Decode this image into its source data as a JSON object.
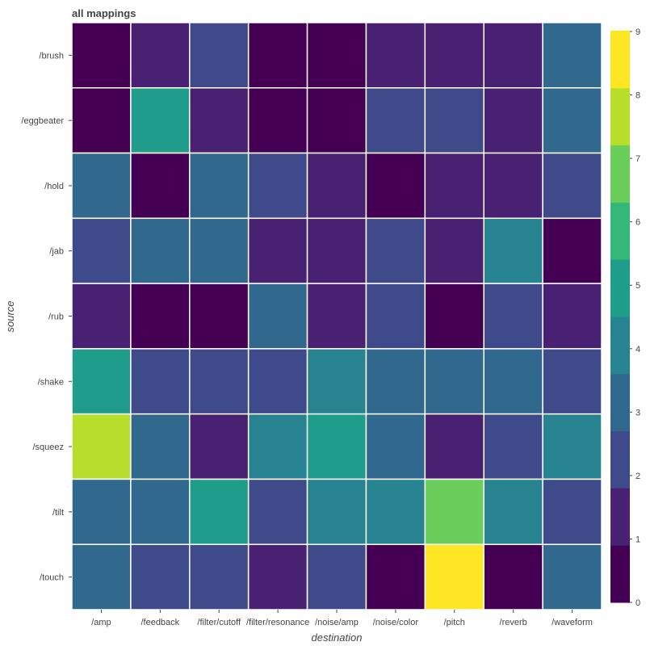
{
  "chart_data": {
    "type": "heatmap",
    "title": "all mappings",
    "xlabel": "destination",
    "ylabel": "source",
    "x_categories": [
      "/amp",
      "/feedback",
      "/filter/cutoff",
      "/filter/resonance",
      "/noise/amp",
      "/noise/color",
      "/pitch",
      "/reverb",
      "/waveform"
    ],
    "y_categories": [
      "/brush",
      "/eggbeater",
      "/hold",
      "/jab",
      "/rub",
      "/shake",
      "/squeez",
      "/tilt",
      "/touch"
    ],
    "values": [
      [
        0,
        1,
        2,
        0,
        0,
        1,
        1,
        1,
        3
      ],
      [
        0,
        5,
        1,
        0,
        0,
        2,
        2,
        1,
        3
      ],
      [
        3,
        0,
        3,
        2,
        1,
        0,
        1,
        1,
        2
      ],
      [
        2,
        3,
        3,
        1,
        1,
        2,
        1,
        4,
        0
      ],
      [
        1,
        0,
        0,
        3,
        1,
        2,
        0,
        2,
        1
      ],
      [
        5,
        2,
        2,
        2,
        4,
        3,
        3,
        3,
        2
      ],
      [
        8,
        3,
        1,
        4,
        5,
        3,
        1,
        2,
        4
      ],
      [
        3,
        3,
        5,
        2,
        4,
        4,
        7,
        4,
        2
      ],
      [
        3,
        2,
        2,
        1,
        2,
        0,
        9,
        0,
        3
      ]
    ],
    "colorbar": {
      "ticks": [
        0,
        1,
        2,
        3,
        4,
        5,
        6,
        7,
        8,
        9
      ],
      "range": [
        0,
        9
      ],
      "levels": 10,
      "colormap": "viridis",
      "colors": [
        "#440154",
        "#482173",
        "#3e4a89",
        "#31688e",
        "#26838f",
        "#1f9d8a",
        "#35b779",
        "#6cce5a",
        "#b6de2b",
        "#fde725"
      ]
    },
    "grid": true,
    "gridline_color": "#ffffff"
  }
}
